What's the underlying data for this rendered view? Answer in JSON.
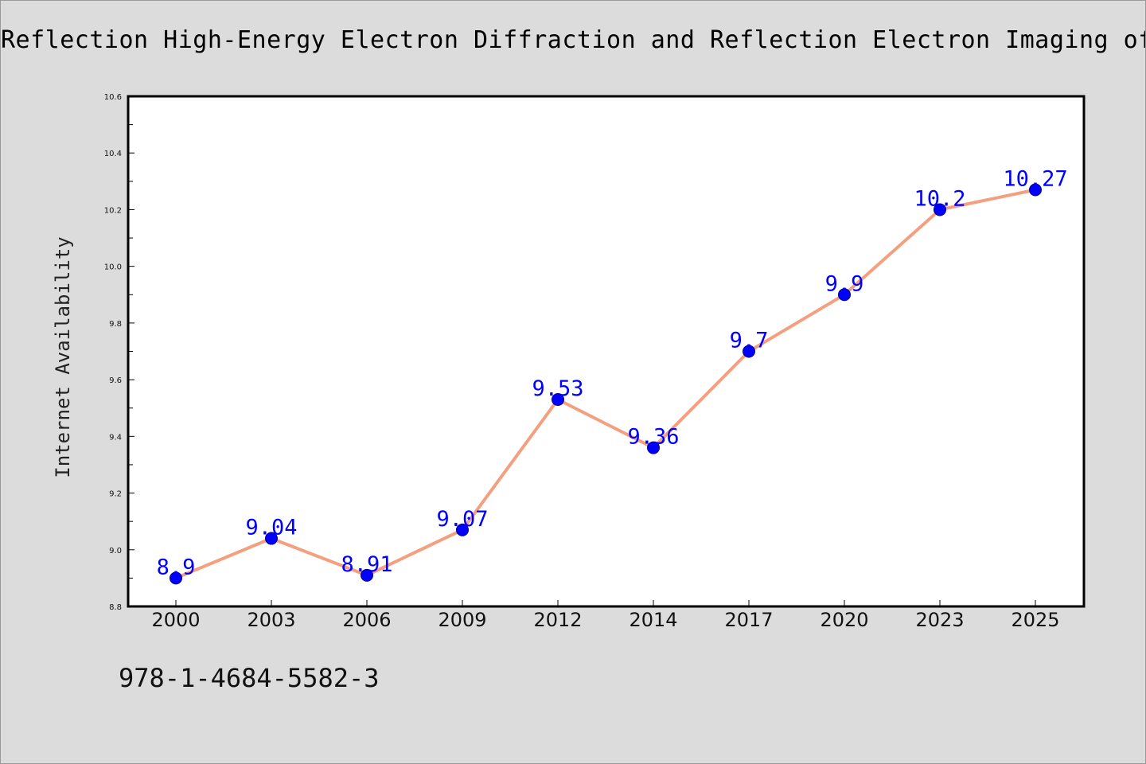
{
  "title": "Reflection High-Energy Electron Diffraction and Reflection Electron Imaging of Surfaces",
  "footer_code": "978-1-4684-5582-3",
  "colors": {
    "background": "#dcdcdc",
    "plot_background": "#ffffff",
    "line": "#f4a080",
    "marker_fill": "#0000ff",
    "marker_stroke": "#00008b",
    "data_label": "#0000ff"
  },
  "chart_data": {
    "type": "line",
    "title": "Reflection High-Energy Electron Diffraction and Reflection Electron Imaging of Surfaces",
    "xlabel": "",
    "ylabel": "Internet Availability",
    "categories": [
      "2000",
      "2003",
      "2006",
      "2009",
      "2012",
      "2014",
      "2017",
      "2020",
      "2023",
      "2025"
    ],
    "series": [
      {
        "values": [
          8.9,
          9.04,
          8.91,
          9.07,
          9.53,
          9.36,
          9.7,
          9.9,
          10.2,
          10.27
        ],
        "labels": [
          "8.9",
          "9.04",
          "8.91",
          "9.07",
          "9.53",
          "9.36",
          "9.7",
          "9.9",
          "10.2",
          "10.27"
        ]
      }
    ],
    "ylim": [
      8.8,
      10.6
    ],
    "y_ticks": [
      "8.8",
      "9.0",
      "9.2",
      "9.4",
      "9.6",
      "9.8",
      "10.0",
      "10.2",
      "10.4",
      "10.6"
    ],
    "grid": false,
    "legend": "none"
  }
}
